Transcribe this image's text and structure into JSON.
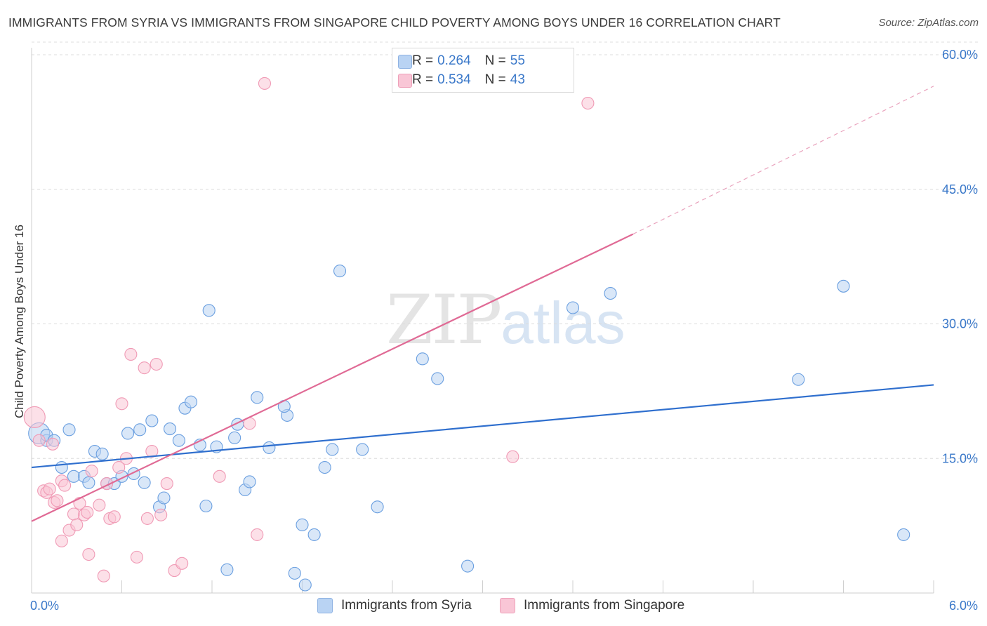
{
  "header": {
    "title": "IMMIGRANTS FROM SYRIA VS IMMIGRANTS FROM SINGAPORE CHILD POVERTY AMONG BOYS UNDER 16 CORRELATION CHART",
    "source": "Source: ZipAtlas.com"
  },
  "watermark": {
    "zip": "ZIP",
    "atlas": "atlas"
  },
  "legend": {
    "rows": [
      {
        "r_label": "R = ",
        "r_value": "0.264",
        "n_label": "N = ",
        "n_value": "55",
        "color": "#b9d3f3"
      },
      {
        "r_label": "R = ",
        "r_value": "0.534",
        "n_label": "N = ",
        "n_value": "43",
        "color": "#f9c6d6"
      }
    ]
  },
  "bottom_legend": {
    "syria": "Immigrants from Syria",
    "singapore": "Immigrants from Singapore"
  },
  "chart_data": {
    "type": "scatter",
    "title": "IMMIGRANTS FROM SYRIA VS IMMIGRANTS FROM SINGAPORE CHILD POVERTY AMONG BOYS UNDER 16 CORRELATION CHART",
    "xlabel": "",
    "ylabel": "Child Poverty Among Boys Under 16",
    "xlim": [
      0,
      6
    ],
    "ylim": [
      0,
      60
    ],
    "x_tick_labels": [
      "0.0%",
      "6.0%"
    ],
    "y_tick_labels": [
      "15.0%",
      "30.0%",
      "45.0%",
      "60.0%"
    ],
    "y_ticks": [
      15,
      30,
      45,
      60
    ],
    "grid": true,
    "series": [
      {
        "name": "Immigrants from Syria",
        "color": "#6a9fe0",
        "fill": "#b9d3f3",
        "R": 0.264,
        "N": 55,
        "trend": {
          "x": [
            0,
            6
          ],
          "y": [
            14.0,
            23.2
          ],
          "color": "#2f6fce"
        },
        "points": [
          [
            0.05,
            17.8
          ],
          [
            0.1,
            17.0
          ],
          [
            0.25,
            18.2
          ],
          [
            0.2,
            14.0
          ],
          [
            0.28,
            13.0
          ],
          [
            0.35,
            13.0
          ],
          [
            0.38,
            12.3
          ],
          [
            0.42,
            15.8
          ],
          [
            0.47,
            15.5
          ],
          [
            0.5,
            12.2
          ],
          [
            0.55,
            12.2
          ],
          [
            0.6,
            13.0
          ],
          [
            0.64,
            17.8
          ],
          [
            0.68,
            13.3
          ],
          [
            0.72,
            18.2
          ],
          [
            0.75,
            12.3
          ],
          [
            0.8,
            19.2
          ],
          [
            0.85,
            9.6
          ],
          [
            0.88,
            10.6
          ],
          [
            0.92,
            18.3
          ],
          [
            0.98,
            17.0
          ],
          [
            1.02,
            20.6
          ],
          [
            1.06,
            21.3
          ],
          [
            1.12,
            16.5
          ],
          [
            1.16,
            9.7
          ],
          [
            1.18,
            31.5
          ],
          [
            1.23,
            16.3
          ],
          [
            1.3,
            2.6
          ],
          [
            1.35,
            17.3
          ],
          [
            1.37,
            18.8
          ],
          [
            1.42,
            11.5
          ],
          [
            1.45,
            12.4
          ],
          [
            1.5,
            21.8
          ],
          [
            1.58,
            16.2
          ],
          [
            1.7,
            19.8
          ],
          [
            1.68,
            20.8
          ],
          [
            1.75,
            2.2
          ],
          [
            1.8,
            7.6
          ],
          [
            1.82,
            0.9
          ],
          [
            1.88,
            6.5
          ],
          [
            1.95,
            14.0
          ],
          [
            2.0,
            16.0
          ],
          [
            2.05,
            35.9
          ],
          [
            2.2,
            16.0
          ],
          [
            2.3,
            9.6
          ],
          [
            2.6,
            26.1
          ],
          [
            2.7,
            23.9
          ],
          [
            2.9,
            3.0
          ],
          [
            3.6,
            31.8
          ],
          [
            3.85,
            33.4
          ],
          [
            5.1,
            23.8
          ],
          [
            5.4,
            34.2
          ],
          [
            5.8,
            6.5
          ],
          [
            0.1,
            17.6
          ],
          [
            0.15,
            17.0
          ]
        ]
      },
      {
        "name": "Immigrants from Singapore",
        "color": "#f09ab5",
        "fill": "#f9c6d6",
        "R": 0.534,
        "N": 43,
        "trend": {
          "x": [
            0,
            4.0
          ],
          "y": [
            8.0,
            40.0
          ],
          "color": "#e06a95"
        },
        "trend_dashed": {
          "x": [
            4.0,
            6
          ],
          "y": [
            40.0,
            56.5
          ]
        },
        "points": [
          [
            0.02,
            19.6
          ],
          [
            0.05,
            17.0
          ],
          [
            0.08,
            11.4
          ],
          [
            0.1,
            11.2
          ],
          [
            0.12,
            11.6
          ],
          [
            0.15,
            10.1
          ],
          [
            0.17,
            10.3
          ],
          [
            0.2,
            12.5
          ],
          [
            0.2,
            5.8
          ],
          [
            0.22,
            12.0
          ],
          [
            0.25,
            7.0
          ],
          [
            0.28,
            8.8
          ],
          [
            0.3,
            7.6
          ],
          [
            0.32,
            10.0
          ],
          [
            0.35,
            8.7
          ],
          [
            0.37,
            9.0
          ],
          [
            0.38,
            4.3
          ],
          [
            0.4,
            13.6
          ],
          [
            0.45,
            9.8
          ],
          [
            0.48,
            1.9
          ],
          [
            0.5,
            12.2
          ],
          [
            0.52,
            8.3
          ],
          [
            0.55,
            8.5
          ],
          [
            0.58,
            14.0
          ],
          [
            0.6,
            21.1
          ],
          [
            0.63,
            15.0
          ],
          [
            0.66,
            26.6
          ],
          [
            0.7,
            4.0
          ],
          [
            0.75,
            25.1
          ],
          [
            0.77,
            8.3
          ],
          [
            0.8,
            15.8
          ],
          [
            0.83,
            25.5
          ],
          [
            0.86,
            8.7
          ],
          [
            0.9,
            12.2
          ],
          [
            0.95,
            2.5
          ],
          [
            1.0,
            3.3
          ],
          [
            1.25,
            13.0
          ],
          [
            1.45,
            18.9
          ],
          [
            1.5,
            6.5
          ],
          [
            1.55,
            56.8
          ],
          [
            3.2,
            15.2
          ],
          [
            3.7,
            54.6
          ],
          [
            0.14,
            16.6
          ]
        ]
      }
    ]
  }
}
